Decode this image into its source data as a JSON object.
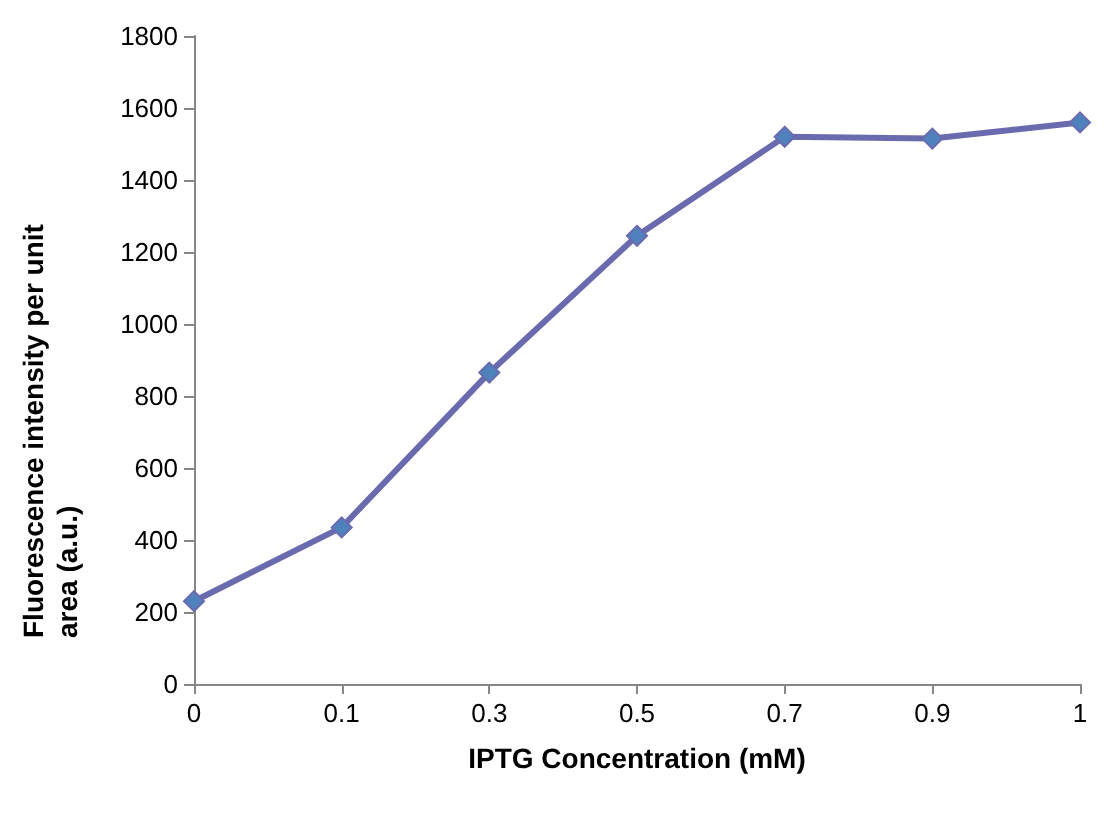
{
  "chart_data": {
    "type": "line",
    "xlabel": "IPTG Concentration (mM)",
    "ylabel": "Fluorescence intensity per unit area (a.u.)",
    "categories": [
      "0",
      "0.1",
      "0.3",
      "0.5",
      "0.7",
      "0.9",
      "1"
    ],
    "series": [
      {
        "color": "#6a6aae",
        "values": [
          230,
          435,
          865,
          1245,
          1520,
          1515,
          1560
        ]
      }
    ],
    "ylim": [
      0,
      1800
    ],
    "yticks": [
      0,
      200,
      400,
      600,
      800,
      1000,
      1200,
      1400,
      1600,
      1800
    ],
    "grid": false,
    "marker": "diamond",
    "line_style": "solid"
  }
}
